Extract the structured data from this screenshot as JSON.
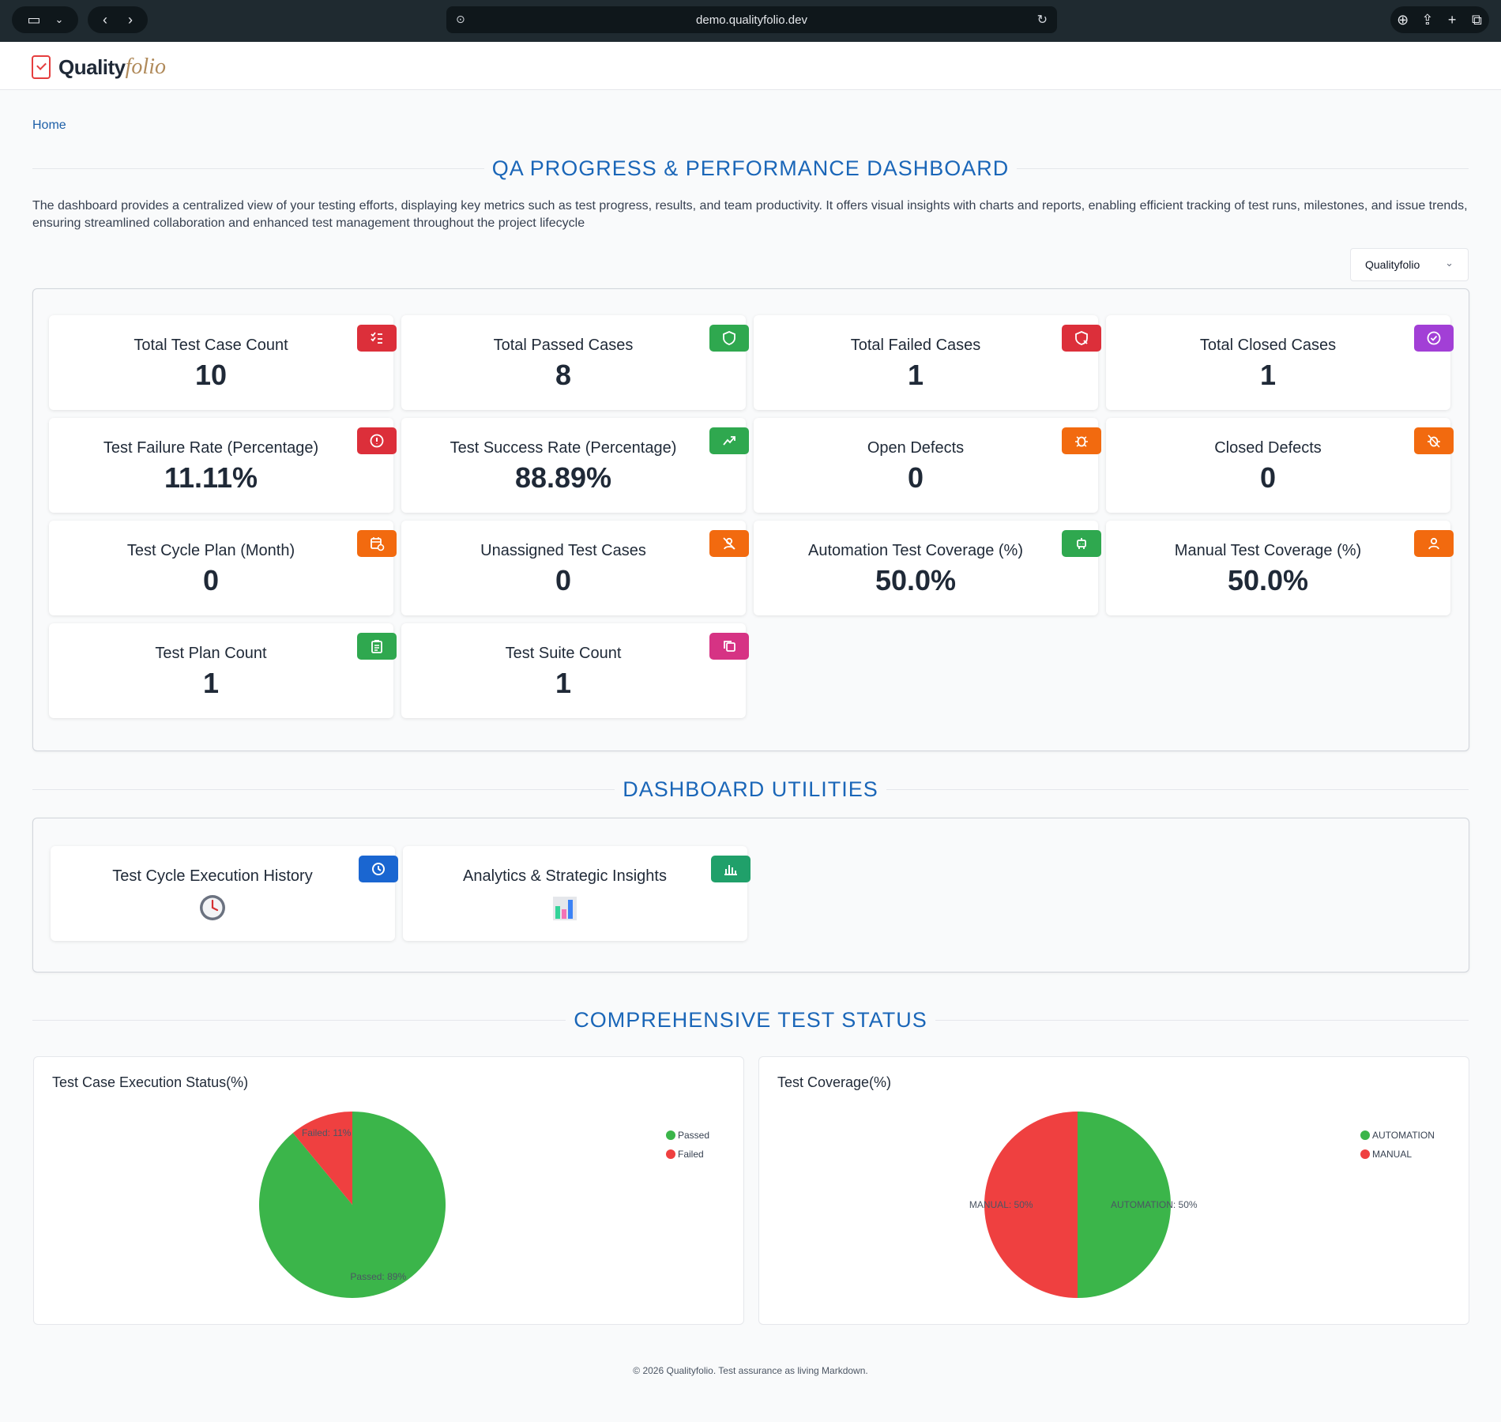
{
  "browser": {
    "url": "demo.qualityfolio.dev"
  },
  "header": {
    "logo_part1": "Quality",
    "logo_part2": "folio"
  },
  "breadcrumb": {
    "home": "Home"
  },
  "dashboard": {
    "title": "QA PROGRESS & PERFORMANCE DASHBOARD",
    "description": "The dashboard provides a centralized view of your testing efforts, displaying key metrics such as test progress, results, and team productivity. It offers visual insights with charts and reports, enabling efficient tracking of test runs, milestones, and issue trends, ensuring streamlined collaboration and enhanced test management throughout the project lifecycle",
    "project_select": "Qualityfolio"
  },
  "metrics": [
    {
      "label": "Total Test Case Count",
      "value": "10",
      "icon": "checklist-icon",
      "color": "#dc2f3a"
    },
    {
      "label": "Total Passed Cases",
      "value": "8",
      "icon": "shield-check-icon",
      "color": "#2fa84f"
    },
    {
      "label": "Total Failed Cases",
      "value": "1",
      "icon": "shield-x-icon",
      "color": "#dc2f3a"
    },
    {
      "label": "Total Closed Cases",
      "value": "1",
      "icon": "circle-check-icon",
      "color": "#a23fd6"
    },
    {
      "label": "Test Failure Rate (Percentage)",
      "value": "11.11%",
      "icon": "alert-circle-icon",
      "color": "#dc2f3a"
    },
    {
      "label": "Test Success Rate (Percentage)",
      "value": "88.89%",
      "icon": "trend-up-icon",
      "color": "#2fa84f"
    },
    {
      "label": "Open Defects",
      "value": "0",
      "icon": "bug-icon",
      "color": "#f26a0f"
    },
    {
      "label": "Closed Defects",
      "value": "0",
      "icon": "bug-off-icon",
      "color": "#f26a0f"
    },
    {
      "label": "Test Cycle Plan (Month)",
      "value": "0",
      "icon": "calendar-clock-icon",
      "color": "#f26a0f"
    },
    {
      "label": "Unassigned Test Cases",
      "value": "0",
      "icon": "user-off-icon",
      "color": "#f26a0f"
    },
    {
      "label": "Automation Test Coverage (%)",
      "value": "50.0%",
      "icon": "robot-icon",
      "color": "#2fa84f"
    },
    {
      "label": "Manual Test Coverage (%)",
      "value": "50.0%",
      "icon": "user-icon",
      "color": "#f26a0f"
    },
    {
      "label": "Test Plan Count",
      "value": "1",
      "icon": "clipboard-icon",
      "color": "#2fa84f"
    },
    {
      "label": "Test Suite Count",
      "value": "1",
      "icon": "copy-icon",
      "color": "#d63384"
    }
  ],
  "utilities": {
    "title": "DASHBOARD UTILITIES",
    "items": [
      {
        "label": "Test Cycle Execution History",
        "icon": "history-icon",
        "color": "#1a66d1",
        "glyph": "clock-icon"
      },
      {
        "label": "Analytics & Strategic Insights",
        "icon": "bar-chart-icon",
        "color": "#20a06a",
        "glyph": "chart-icon"
      }
    ]
  },
  "status": {
    "title": "COMPREHENSIVE TEST STATUS"
  },
  "chart_data": [
    {
      "type": "pie",
      "title": "Test Case Execution Status(%)",
      "categories": [
        "Passed",
        "Failed"
      ],
      "values": [
        89,
        11
      ],
      "slice_labels": [
        "Passed: 89%",
        "Failed: 11%"
      ],
      "colors": [
        "#3bb54a",
        "#ef4040"
      ],
      "legend": "top-right"
    },
    {
      "type": "pie",
      "title": "Test Coverage(%)",
      "categories": [
        "AUTOMATION",
        "MANUAL"
      ],
      "values": [
        50,
        50
      ],
      "slice_labels": [
        "AUTOMATION: 50%",
        "MANUAL: 50%"
      ],
      "colors": [
        "#3bb54a",
        "#ef4040"
      ],
      "legend": "top-right"
    }
  ],
  "footer": {
    "text": "© 2026 Qualityfolio. Test assurance as living Markdown."
  }
}
